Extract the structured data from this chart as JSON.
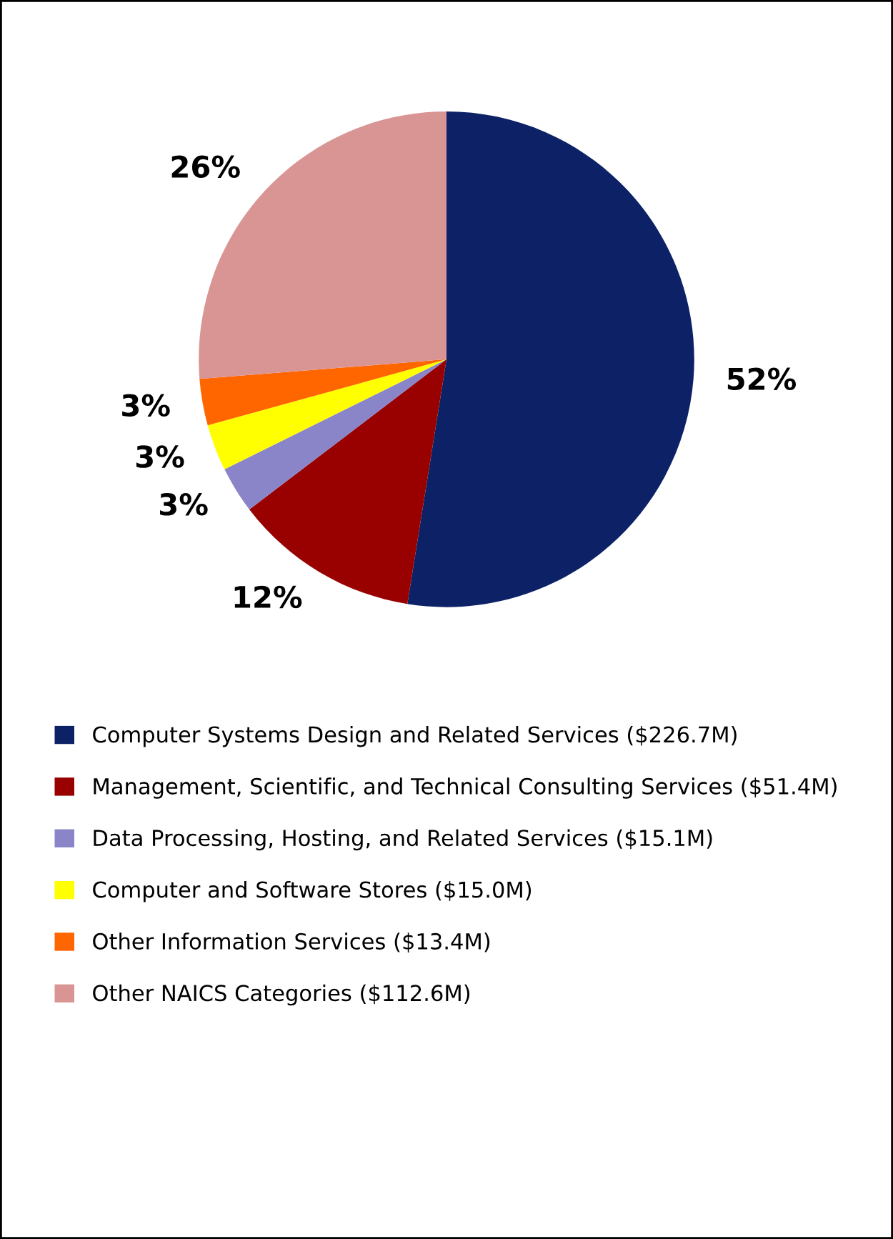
{
  "chart_data": {
    "type": "pie",
    "categories": [
      "Computer Systems Design and Related Services ($226.7M)",
      "Management, Scientific, and Technical Consulting Services ($51.4M)",
      "Data Processing, Hosting, and Related Services ($15.1M)",
      "Computer and Software Stores ($15.0M)",
      "Other Information Services ($13.4M)",
      "Other NAICS Categories ($112.6M)"
    ],
    "values": [
      52,
      12,
      3,
      3,
      3,
      26
    ],
    "value_labels": [
      "52%",
      "12%",
      "3%",
      "3%",
      "3%",
      "26%"
    ],
    "colors": [
      "#0d2266",
      "#990000",
      "#8a84c8",
      "#ffff00",
      "#ff6600",
      "#d99594"
    ],
    "legend": "bottom"
  }
}
